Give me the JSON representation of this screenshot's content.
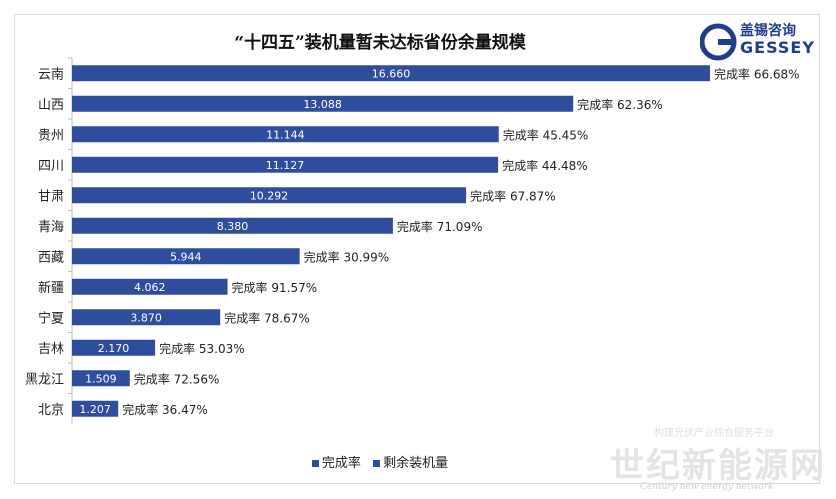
{
  "chart_data": {
    "type": "bar",
    "orientation": "horizontal",
    "title": "“十四五”装机量暂未达标省份余量规模",
    "categories": [
      "云南",
      "山西",
      "贵州",
      "四川",
      "甘肃",
      "青海",
      "西藏",
      "新疆",
      "宁夏",
      "吉林",
      "黑龙江",
      "北京"
    ],
    "series": [
      {
        "name": "剩余装机量",
        "values": [
          16.66,
          13.088,
          11.144,
          11.127,
          10.292,
          8.38,
          5.944,
          4.062,
          3.87,
          2.17,
          1.509,
          1.207
        ],
        "labels": [
          "16.660",
          "13.088",
          "11.144",
          "11.127",
          "10.292",
          "8.380",
          "5.944",
          "4.062",
          "3.870",
          "2.170",
          "1.509",
          "1.207"
        ]
      },
      {
        "name": "完成率",
        "labels": [
          "完成率 66.68%",
          "完成率 62.36%",
          "完成率 45.45%",
          "完成率 44.48%",
          "完成率 67.87%",
          "完成率 71.09%",
          "完成率 30.99%",
          "完成率 91.57%",
          "完成率 78.67%",
          "完成率 53.03%",
          "完成率 72.56%",
          "完成率 36.47%"
        ]
      }
    ],
    "xlim": [
      0,
      16.66
    ],
    "grid": false,
    "legend_position": "bottom",
    "bar_color": "#2e4d9d",
    "label_color": "#ffffff"
  },
  "legend": {
    "item1": "完成率",
    "item2": "剩余装机量"
  },
  "logo": {
    "name": "盖锡咨询",
    "word": "GESSEY"
  },
  "watermark": {
    "main": "世纪新能源网",
    "sub": "Century new energy network",
    "top": "构建光伏产业综合服务平台"
  },
  "colors": {
    "bar": "#2e4d9d",
    "logo": "#1f3d8a"
  }
}
